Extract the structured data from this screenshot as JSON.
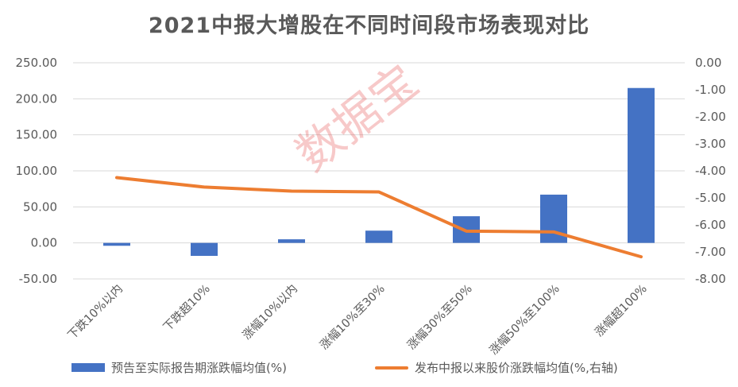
{
  "chart_data": {
    "type": "bar",
    "title": "2021中报大增股在不同时间段市场表现对比",
    "categories": [
      "下跌10%以内",
      "下跌超10%",
      "涨幅10%以内",
      "涨幅10%至30%",
      "涨幅30%至50%",
      "涨幅50%至100%",
      "涨幅超100%"
    ],
    "series": [
      {
        "name": "预告至实际报告期涨跌幅均值(%)",
        "type": "bar",
        "axis": "left",
        "color": "#4472c4",
        "values": [
          -4,
          -18,
          5,
          17,
          37,
          67,
          215
        ]
      },
      {
        "name": "发布中报以来股价涨跌幅均值(%,右轴)",
        "type": "line",
        "axis": "right",
        "color": "#ed7d31",
        "values": [
          -4.25,
          -4.6,
          -4.75,
          -4.78,
          -6.23,
          -6.26,
          -7.18
        ]
      }
    ],
    "ylim": [
      -50,
      250
    ],
    "y2lim": [
      -8,
      0
    ],
    "yticks": [
      "-50.00",
      "0.00",
      "50.00",
      "100.00",
      "150.00",
      "200.00",
      "250.00"
    ],
    "y2ticks": [
      "-8.00",
      "-7.00",
      "-6.00",
      "-5.00",
      "-4.00",
      "-3.00",
      "-2.00",
      "-1.00",
      "0.00"
    ],
    "grid": true,
    "legend_position": "bottom"
  },
  "watermark": "数据宝"
}
